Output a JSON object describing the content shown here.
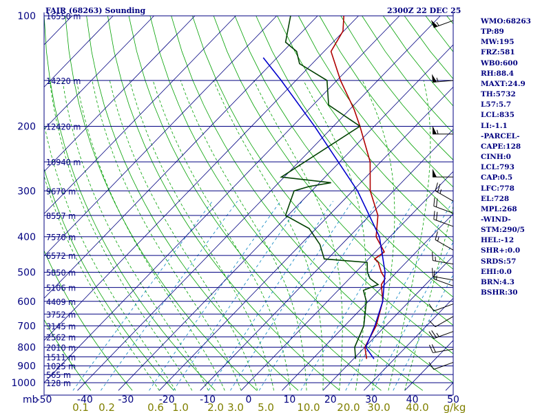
{
  "title": "FAIR (68263) Sounding",
  "datetime": "2300Z 22 DEC 25",
  "stats": [
    "WMO:68263",
    "TP:89",
    "MW:195",
    "FRZ:581",
    "WB0:600",
    "RH:88.4",
    "MAXT:24.9",
    "TH:5732",
    "L57:5.7",
    "LCL:835",
    "LI:-1.1",
    "-PARCEL-",
    "CAPE:128",
    "CINH:0",
    "LCL:793",
    "CAP:0.5",
    "LFC:778",
    "EL:728",
    "MPL:268",
    "-WIND-",
    "STM:290/5",
    "HEL:-12",
    "SHR+:0.0",
    "SRDS:57",
    "EHI:0.0",
    "BRN:4.3",
    "BSHR:30"
  ],
  "chart_data": {
    "type": "line",
    "subtype": "skew-T log-p sounding",
    "y_axis": {
      "quantity": "pressure",
      "unit_label": "mb",
      "log_scale": true,
      "range": [
        1000,
        100
      ],
      "tick_labels": [
        "100",
        "200",
        "300",
        "400",
        "500",
        "600",
        "700",
        "800",
        "900",
        "1000"
      ]
    },
    "x_axis": {
      "quantity": "temperature",
      "range": [
        -50,
        50
      ],
      "tick_labels": [
        "-50",
        "-40",
        "-30",
        "-20",
        "-10",
        "0",
        "10",
        "20",
        "30",
        "40",
        "50"
      ]
    },
    "mixing_ratio_axis": {
      "unit_label": "g/kg",
      "tick_labels": [
        "0.1",
        "0.2",
        "0.6",
        "1.0",
        "2.0",
        "3.0",
        "5.0",
        "10.0",
        "20.0",
        "30.0",
        "40.0"
      ]
    },
    "height_labels": [
      {
        "p": 100,
        "label": "16550 m"
      },
      {
        "p": 150,
        "label": "14220 m"
      },
      {
        "p": 200,
        "label": "12420 m"
      },
      {
        "p": 250,
        "label": "10940 m"
      },
      {
        "p": 300,
        "label": "9670 m"
      },
      {
        "p": 350,
        "label": "8557 m"
      },
      {
        "p": 400,
        "label": "7570 m"
      },
      {
        "p": 450,
        "label": "6572 m"
      },
      {
        "p": 500,
        "label": "5850 m"
      },
      {
        "p": 550,
        "label": "5106 m"
      },
      {
        "p": 600,
        "label": "4409 m"
      },
      {
        "p": 650,
        "label": "3752 m"
      },
      {
        "p": 700,
        "label": "3145 m"
      },
      {
        "p": 750,
        "label": "2562 m"
      },
      {
        "p": 800,
        "label": "2010 m"
      },
      {
        "p": 850,
        "label": "1511 m"
      },
      {
        "p": 900,
        "label": "1025 m"
      },
      {
        "p": 950,
        "label": "565 m"
      },
      {
        "p": 1000,
        "label": "128 m"
      }
    ],
    "series": [
      {
        "role": "temperature",
        "color": "#b00000",
        "points": [
          {
            "p": 861,
            "t": 23.2
          },
          {
            "p": 800,
            "t": 20.0
          },
          {
            "p": 700,
            "t": 17.7
          },
          {
            "p": 600,
            "t": 13.5
          },
          {
            "p": 540,
            "t": 9.2
          },
          {
            "p": 520,
            "t": 8.7
          },
          {
            "p": 500,
            "t": 6.3
          },
          {
            "p": 470,
            "t": 3.2
          },
          {
            "p": 460,
            "t": 1.5
          },
          {
            "p": 440,
            "t": 2.2
          },
          {
            "p": 400,
            "t": -3.4
          },
          {
            "p": 350,
            "t": -8.0
          },
          {
            "p": 300,
            "t": -15.7
          },
          {
            "p": 250,
            "t": -22.6
          },
          {
            "p": 200,
            "t": -33.5
          },
          {
            "p": 180,
            "t": -38.9
          },
          {
            "p": 150,
            "t": -49.1
          },
          {
            "p": 125,
            "t": -58.3
          },
          {
            "p": 110,
            "t": -60.2
          },
          {
            "p": 100,
            "t": -63.6
          }
        ]
      },
      {
        "role": "dewpoint",
        "color": "#004000",
        "points": [
          {
            "p": 861,
            "t": 20.5
          },
          {
            "p": 800,
            "t": 17.5
          },
          {
            "p": 700,
            "t": 14.7
          },
          {
            "p": 600,
            "t": 9.5
          },
          {
            "p": 560,
            "t": 6.2
          },
          {
            "p": 540,
            "t": 8.4
          },
          {
            "p": 520,
            "t": 5.0
          },
          {
            "p": 500,
            "t": 2.9
          },
          {
            "p": 470,
            "t": 0.5
          },
          {
            "p": 460,
            "t": -10.8
          },
          {
            "p": 420,
            "t": -15.3
          },
          {
            "p": 380,
            "t": -21.7
          },
          {
            "p": 350,
            "t": -30.6
          },
          {
            "p": 300,
            "t": -34.3
          },
          {
            "p": 292,
            "t": -31.7
          },
          {
            "p": 285,
            "t": -27.2
          },
          {
            "p": 275,
            "t": -40.7
          },
          {
            "p": 200,
            "t": -33.5
          },
          {
            "p": 175,
            "t": -46.2
          },
          {
            "p": 150,
            "t": -52.4
          },
          {
            "p": 135,
            "t": -63.1
          },
          {
            "p": 125,
            "t": -66.7
          },
          {
            "p": 118,
            "t": -71.6
          },
          {
            "p": 100,
            "t": -76.6
          }
        ]
      },
      {
        "role": "parcel",
        "color": "#0000cc",
        "points": [
          {
            "p": 861,
            "t": 25.0
          },
          {
            "p": 800,
            "t": 20.2
          },
          {
            "p": 700,
            "t": 17.4
          },
          {
            "p": 600,
            "t": 13.5
          },
          {
            "p": 500,
            "t": 7.2
          },
          {
            "p": 400,
            "t": -2.6
          },
          {
            "p": 300,
            "t": -18.8
          },
          {
            "p": 200,
            "t": -44.6
          },
          {
            "p": 150,
            "t": -63.6
          },
          {
            "p": 130,
            "t": -73.4
          }
        ]
      }
    ],
    "winds": [
      {
        "p": 880,
        "dir": 250,
        "kt": 10
      },
      {
        "p": 810,
        "dir": 260,
        "kt": 20
      },
      {
        "p": 725,
        "dir": 250,
        "kt": 25
      },
      {
        "p": 660,
        "dir": 240,
        "kt": 10
      },
      {
        "p": 610,
        "dir": 250,
        "kt": 10
      },
      {
        "p": 545,
        "dir": 290,
        "kt": 15
      },
      {
        "p": 525,
        "dir": 280,
        "kt": 10
      },
      {
        "p": 475,
        "dir": 280,
        "kt": 15
      },
      {
        "p": 435,
        "dir": 300,
        "kt": 15
      },
      {
        "p": 375,
        "dir": 290,
        "kt": 20
      },
      {
        "p": 345,
        "dir": 290,
        "kt": 20
      },
      {
        "p": 320,
        "dir": 300,
        "kt": 25
      },
      {
        "p": 275,
        "dir": 270,
        "kt": 50
      },
      {
        "p": 210,
        "dir": 270,
        "kt": 55
      },
      {
        "p": 150,
        "dir": 265,
        "kt": 55
      },
      {
        "p": 103,
        "dir": 250,
        "kt": 55
      }
    ],
    "colors": {
      "background": "#ffffff",
      "isobars": "#000080",
      "isotherms": "#000080",
      "dry_adiabats": "#00a000",
      "moist_adiabats": "#00a000",
      "mixing_ratio": "#0080c0",
      "text": "#000080",
      "mixing_ratio_labels": "#808000",
      "winds": "#000000"
    }
  }
}
